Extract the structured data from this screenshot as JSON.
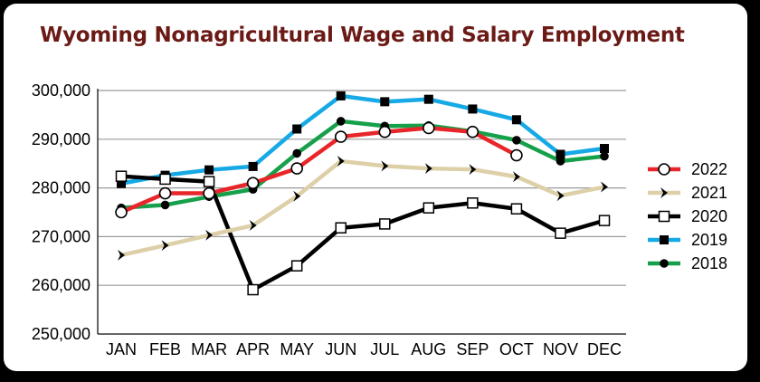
{
  "chart_data": {
    "type": "line",
    "title": "Wyoming Nonagricultural Wage and Salary Employment",
    "xlabel": "",
    "ylabel": "",
    "categories": [
      "JAN",
      "FEB",
      "MAR",
      "APR",
      "MAY",
      "JUN",
      "JUL",
      "AUG",
      "SEP",
      "OCT",
      "NOV",
      "DEC"
    ],
    "ylim": [
      250000,
      300000
    ],
    "yticks": [
      250000,
      260000,
      270000,
      280000,
      290000,
      300000
    ],
    "ytick_labels": [
      "250,000",
      "260,000",
      "270,000",
      "280,000",
      "290,000",
      "300,000"
    ],
    "grid": true,
    "legend_position": "right",
    "series": [
      {
        "name": "2022",
        "color": "#e8262a",
        "marker": "open-circle",
        "values": [
          275000,
          278900,
          278900,
          281000,
          284000,
          290500,
          291500,
          292300,
          291500,
          286700,
          null,
          null
        ]
      },
      {
        "name": "2021",
        "color": "#ddd0a8",
        "marker": "chevron",
        "values": [
          266200,
          268200,
          270300,
          272300,
          278300,
          285500,
          284500,
          284000,
          283800,
          282300,
          278400,
          280200
        ]
      },
      {
        "name": "2020",
        "color": "#000000",
        "marker": "open-square",
        "values": [
          282400,
          281800,
          281300,
          259100,
          264000,
          271800,
          272600,
          275900,
          276900,
          275700,
          270700,
          273300
        ]
      },
      {
        "name": "2019",
        "color": "#16a9e6",
        "marker": "filled-square",
        "values": [
          280900,
          282600,
          283700,
          284400,
          292100,
          298900,
          297700,
          298200,
          296200,
          294000,
          286900,
          288100
        ]
      },
      {
        "name": "2018",
        "color": "#16a04a",
        "marker": "filled-circle",
        "values": [
          275900,
          276500,
          278200,
          279700,
          287100,
          293700,
          292700,
          292800,
          291600,
          289800,
          285500,
          286500
        ]
      }
    ]
  }
}
